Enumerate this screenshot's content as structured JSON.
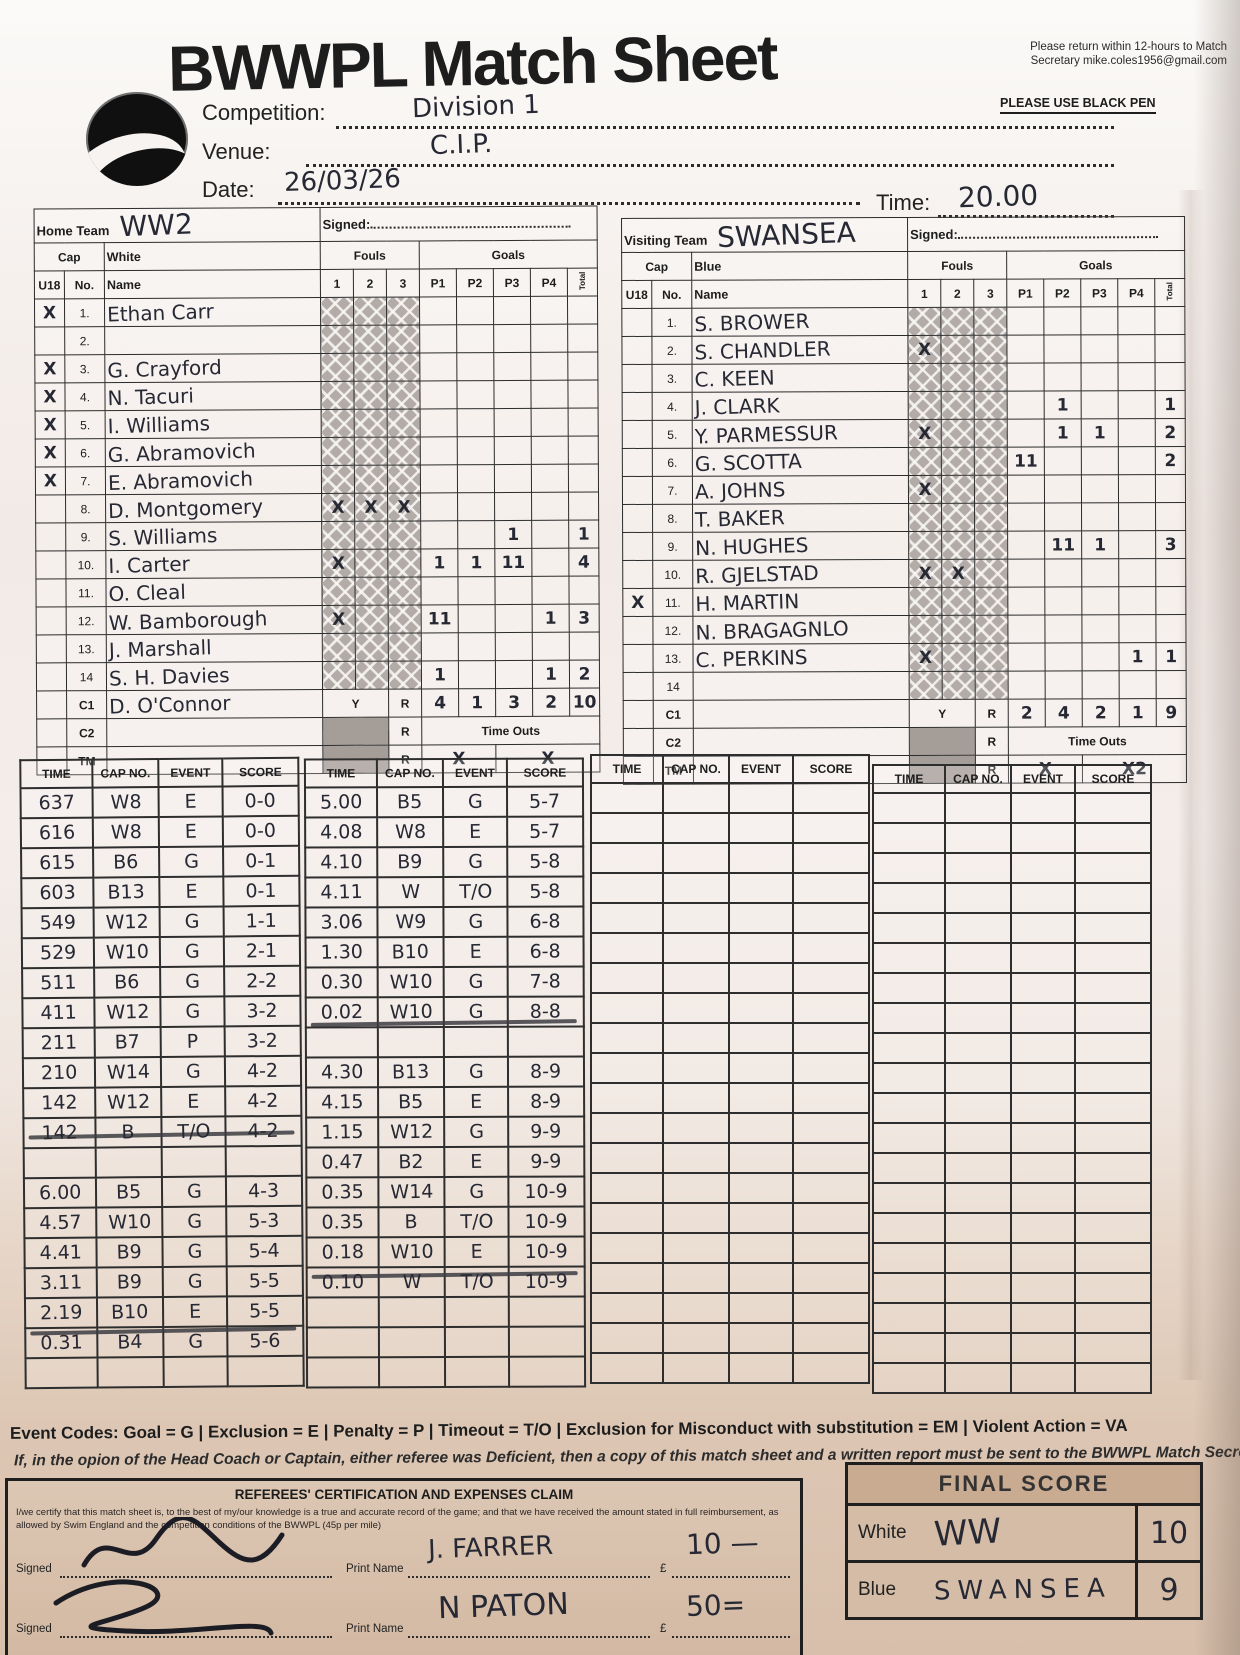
{
  "header": {
    "title": "BWWPL Match Sheet",
    "return_note": "Please return within 12-hours to Match Secretary mike.coles1956@gmail.com",
    "black_pen_note": "PLEASE USE BLACK PEN",
    "fields": {
      "competition": {
        "label": "Competition:",
        "value": "Division 1"
      },
      "venue": {
        "label": "Venue:",
        "value": "C.I.P."
      },
      "date": {
        "label": "Date:",
        "value": "26/03/26"
      },
      "time": {
        "label": "Time:",
        "value": "20.00"
      }
    }
  },
  "home": {
    "team_label": "Home Team",
    "team_name": "WW2",
    "signed_label": "Signed:",
    "cap_label": "Cap",
    "color_label": "White",
    "u18_label": "U18",
    "no_label": "No.",
    "name_label": "Name",
    "fouls_label": "Fouls",
    "goals_label": "Goals",
    "foul_cols": [
      "1",
      "2",
      "3"
    ],
    "goal_cols": [
      "P1",
      "P2",
      "P3",
      "P4"
    ],
    "total_col_label": "Total",
    "players": [
      {
        "no": "1.",
        "u18": "X",
        "name": "Ethan Carr",
        "fouls": [
          "",
          "",
          ""
        ],
        "goals": [
          "",
          "",
          "",
          ""
        ],
        "total": ""
      },
      {
        "no": "2.",
        "u18": "",
        "name": "",
        "fouls": [
          "",
          "",
          ""
        ],
        "goals": [
          "",
          "",
          "",
          ""
        ],
        "total": ""
      },
      {
        "no": "3.",
        "u18": "X",
        "name": "G. Crayford",
        "fouls": [
          "",
          "",
          ""
        ],
        "goals": [
          "",
          "",
          "",
          ""
        ],
        "total": ""
      },
      {
        "no": "4.",
        "u18": "X",
        "name": "N. Tacuri",
        "fouls": [
          "",
          "",
          ""
        ],
        "goals": [
          "",
          "",
          "",
          ""
        ],
        "total": ""
      },
      {
        "no": "5.",
        "u18": "X",
        "name": "I. Williams",
        "fouls": [
          "",
          "",
          ""
        ],
        "goals": [
          "",
          "",
          "",
          ""
        ],
        "total": ""
      },
      {
        "no": "6.",
        "u18": "X",
        "name": "G. Abramovich",
        "fouls": [
          "",
          "",
          ""
        ],
        "goals": [
          "",
          "",
          "",
          ""
        ],
        "total": ""
      },
      {
        "no": "7.",
        "u18": "X",
        "name": "E. Abramovich",
        "fouls": [
          "",
          "",
          ""
        ],
        "goals": [
          "",
          "",
          "",
          ""
        ],
        "total": ""
      },
      {
        "no": "8.",
        "u18": "",
        "name": "D. Montgomery",
        "fouls": [
          "X",
          "X",
          "X"
        ],
        "goals": [
          "",
          "",
          "",
          ""
        ],
        "total": ""
      },
      {
        "no": "9.",
        "u18": "",
        "name": "S. Williams",
        "fouls": [
          "",
          "",
          ""
        ],
        "goals": [
          "",
          "",
          "1",
          ""
        ],
        "total": "1"
      },
      {
        "no": "10.",
        "u18": "",
        "name": "I. Carter",
        "fouls": [
          "X",
          "",
          ""
        ],
        "goals": [
          "1",
          "1",
          "11",
          ""
        ],
        "total": "4"
      },
      {
        "no": "11.",
        "u18": "",
        "name": "O. Cleal",
        "fouls": [
          "",
          "",
          ""
        ],
        "goals": [
          "",
          "",
          "",
          ""
        ],
        "total": ""
      },
      {
        "no": "12.",
        "u18": "",
        "name": "W. Bamborough",
        "fouls": [
          "X",
          "",
          ""
        ],
        "goals": [
          "11",
          "",
          "",
          "1"
        ],
        "total": "3"
      },
      {
        "no": "13.",
        "u18": "",
        "name": "J. Marshall",
        "fouls": [
          "",
          "",
          ""
        ],
        "goals": [
          "",
          "",
          "",
          ""
        ],
        "total": ""
      },
      {
        "no": "14",
        "u18": "",
        "name": "S. H. Davies",
        "fouls": [
          "",
          "",
          ""
        ],
        "goals": [
          "1",
          "",
          "",
          "1"
        ],
        "total": "2"
      }
    ],
    "c1": {
      "label": "C1",
      "name": "D. O'Connor",
      "y": "Y",
      "r": "R",
      "periods": [
        "4",
        "1",
        "3",
        "2"
      ],
      "total": "10"
    },
    "c2": {
      "label": "C2",
      "r": "R",
      "timeouts_label": "Time Outs"
    },
    "tm": {
      "label": "TM",
      "r": "R",
      "to1": "X",
      "to2": "X"
    }
  },
  "away": {
    "team_label": "Visiting Team",
    "team_name": "SWANSEA",
    "signed_label": "Signed:",
    "cap_label": "Cap",
    "color_label": "Blue",
    "u18_label": "U18",
    "no_label": "No.",
    "name_label": "Name",
    "fouls_label": "Fouls",
    "goals_label": "Goals",
    "foul_cols": [
      "1",
      "2",
      "3"
    ],
    "goal_cols": [
      "P1",
      "P2",
      "P3",
      "P4"
    ],
    "total_col_label": "Total",
    "players": [
      {
        "no": "1.",
        "u18": "",
        "name": "S. BROWER",
        "fouls": [
          "",
          "",
          ""
        ],
        "goals": [
          "",
          "",
          "",
          ""
        ],
        "total": ""
      },
      {
        "no": "2.",
        "u18": "",
        "name": "S. CHANDLER",
        "fouls": [
          "X",
          "",
          ""
        ],
        "goals": [
          "",
          "",
          "",
          ""
        ],
        "total": ""
      },
      {
        "no": "3.",
        "u18": "",
        "name": "C. KEEN",
        "fouls": [
          "",
          "",
          ""
        ],
        "goals": [
          "",
          "",
          "",
          ""
        ],
        "total": ""
      },
      {
        "no": "4.",
        "u18": "",
        "name": "J. CLARK",
        "fouls": [
          "",
          "",
          ""
        ],
        "goals": [
          "",
          "1",
          "",
          ""
        ],
        "total": "1"
      },
      {
        "no": "5.",
        "u18": "",
        "name": "Y. PARMESSUR",
        "fouls": [
          "X",
          "",
          ""
        ],
        "goals": [
          "",
          "1",
          "1",
          ""
        ],
        "total": "2"
      },
      {
        "no": "6.",
        "u18": "",
        "name": "G. SCOTTA",
        "fouls": [
          "",
          "",
          ""
        ],
        "goals": [
          "11",
          "",
          "",
          ""
        ],
        "total": "2"
      },
      {
        "no": "7.",
        "u18": "",
        "name": "A. JOHNS",
        "fouls": [
          "X",
          "",
          ""
        ],
        "goals": [
          "",
          "",
          "",
          ""
        ],
        "total": ""
      },
      {
        "no": "8.",
        "u18": "",
        "name": "T. BAKER",
        "fouls": [
          "",
          "",
          ""
        ],
        "goals": [
          "",
          "",
          "",
          ""
        ],
        "total": ""
      },
      {
        "no": "9.",
        "u18": "",
        "name": "N. HUGHES",
        "fouls": [
          "",
          "",
          ""
        ],
        "goals": [
          "",
          "11",
          "1",
          ""
        ],
        "total": "3"
      },
      {
        "no": "10.",
        "u18": "",
        "name": "R. GJELSTAD",
        "fouls": [
          "X",
          "X",
          ""
        ],
        "goals": [
          "",
          "",
          "",
          ""
        ],
        "total": ""
      },
      {
        "no": "11.",
        "u18": "X",
        "name": "H. MARTIN",
        "fouls": [
          "",
          "",
          ""
        ],
        "goals": [
          "",
          "",
          "",
          ""
        ],
        "total": ""
      },
      {
        "no": "12.",
        "u18": "",
        "name": "N. BRAGAGNLO",
        "fouls": [
          "",
          "",
          ""
        ],
        "goals": [
          "",
          "",
          "",
          ""
        ],
        "total": ""
      },
      {
        "no": "13.",
        "u18": "",
        "name": "C. PERKINS",
        "fouls": [
          "X",
          "",
          ""
        ],
        "goals": [
          "",
          "",
          "",
          "1"
        ],
        "total": "1"
      },
      {
        "no": "14",
        "u18": "",
        "name": "",
        "fouls": [
          "",
          "",
          ""
        ],
        "goals": [
          "",
          "",
          "",
          ""
        ],
        "total": ""
      }
    ],
    "c1": {
      "label": "C1",
      "name": "",
      "y": "Y",
      "r": "R",
      "periods": [
        "2",
        "4",
        "2",
        "1"
      ],
      "total": "9"
    },
    "c2": {
      "label": "C2",
      "r": "R",
      "timeouts_label": "Time Outs"
    },
    "tm": {
      "label": "TM",
      "r": "R",
      "to1": "X",
      "to2": "X2"
    }
  },
  "log": {
    "headers": [
      "TIME",
      "CAP NO.",
      "EVENT",
      "SCORE"
    ],
    "tables": [
      [
        {
          "time": "637",
          "cap": "W8",
          "event": "E",
          "score": "0-0"
        },
        {
          "time": "616",
          "cap": "W8",
          "event": "E",
          "score": "0-0"
        },
        {
          "time": "615",
          "cap": "B6",
          "event": "G",
          "score": "0-1"
        },
        {
          "time": "603",
          "cap": "B13",
          "event": "E",
          "score": "0-1"
        },
        {
          "time": "549",
          "cap": "W12",
          "event": "G",
          "score": "1-1"
        },
        {
          "time": "529",
          "cap": "W10",
          "event": "G",
          "score": "2-1"
        },
        {
          "time": "511",
          "cap": "B6",
          "event": "G",
          "score": "2-2"
        },
        {
          "time": "411",
          "cap": "W12",
          "event": "G",
          "score": "3-2"
        },
        {
          "time": "211",
          "cap": "B7",
          "event": "P",
          "score": "3-2"
        },
        {
          "time": "210",
          "cap": "W14",
          "event": "G",
          "score": "4-2"
        },
        {
          "time": "142",
          "cap": "W12",
          "event": "E",
          "score": "4-2"
        },
        {
          "time": "142",
          "cap": "B",
          "event": "T/O",
          "score": "4-2"
        },
        {
          "sep": true
        },
        {
          "time": "6.00",
          "cap": "B5",
          "event": "G",
          "score": "4-3"
        },
        {
          "time": "4.57",
          "cap": "W10",
          "event": "G",
          "score": "5-3"
        },
        {
          "time": "4.41",
          "cap": "B9",
          "event": "G",
          "score": "5-4"
        },
        {
          "time": "3.11",
          "cap": "B9",
          "event": "G",
          "score": "5-5"
        },
        {
          "time": "2.19",
          "cap": "B10",
          "event": "E",
          "score": "5-5"
        },
        {
          "time": "0.31",
          "cap": "B4",
          "event": "G",
          "score": "5-6"
        },
        {
          "sep": true
        }
      ],
      [
        {
          "time": "5.00",
          "cap": "B5",
          "event": "G",
          "score": "5-7"
        },
        {
          "time": "4.08",
          "cap": "W8",
          "event": "E",
          "score": "5-7"
        },
        {
          "time": "4.10",
          "cap": "B9",
          "event": "G",
          "score": "5-8"
        },
        {
          "time": "4.11",
          "cap": "W",
          "event": "T/O",
          "score": "5-8"
        },
        {
          "time": "3.06",
          "cap": "W9",
          "event": "G",
          "score": "6-8"
        },
        {
          "time": "1.30",
          "cap": "B10",
          "event": "E",
          "score": "6-8"
        },
        {
          "time": "0.30",
          "cap": "W10",
          "event": "G",
          "score": "7-8"
        },
        {
          "time": "0.02",
          "cap": "W10",
          "event": "G",
          "score": "8-8"
        },
        {
          "sep": true
        },
        {
          "time": "4.30",
          "cap": "B13",
          "event": "G",
          "score": "8-9"
        },
        {
          "time": "4.15",
          "cap": "B5",
          "event": "E",
          "score": "8-9"
        },
        {
          "time": "1.15",
          "cap": "W12",
          "event": "G",
          "score": "9-9"
        },
        {
          "time": "0.47",
          "cap": "B2",
          "event": "E",
          "score": "9-9"
        },
        {
          "time": "0.35",
          "cap": "W14",
          "event": "G",
          "score": "10-9"
        },
        {
          "time": "0.35",
          "cap": "B",
          "event": "T/O",
          "score": "10-9"
        },
        {
          "time": "0.18",
          "cap": "W10",
          "event": "E",
          "score": "10-9"
        },
        {
          "time": "0.10",
          "cap": "W",
          "event": "T/O",
          "score": "10-9"
        },
        {
          "sep": true
        },
        {},
        {}
      ],
      [],
      []
    ]
  },
  "footer": {
    "event_codes": "Event Codes: Goal = G | Exclusion = E | Penalty = P | Timeout = T/O | Exclusion for Misconduct with substitution = EM | Violent Action = VA",
    "deficient_note": "If, in the opion of the Head Coach or Captain, either referee was Deficient, then a copy of this match sheet and a written report must be sent to the BWWPL Match Secretary",
    "referees": {
      "title": "REFEREES' CERTIFICATION AND EXPENSES CLAIM",
      "body": "I/we certify that this match sheet is, to the best of my/our knowledge is a true and accurate record of the game; and that we have received the amount stated in full reimbursement, as allowed by Swim England and the competition conditions of the BWWPL (45p per mile)",
      "labels": {
        "signed": "Signed",
        "print": "Print Name",
        "currency": "£"
      },
      "rows": [
        {
          "name": "J. FARRER",
          "amount": "10 —"
        },
        {
          "name": "N PATON",
          "amount": "50="
        }
      ]
    },
    "final_score": {
      "title": "FINAL SCORE",
      "rows": [
        {
          "label": "White",
          "team": "WW",
          "score": "10"
        },
        {
          "label": "Blue",
          "team": "SWANSEA",
          "score": "9"
        }
      ]
    }
  }
}
